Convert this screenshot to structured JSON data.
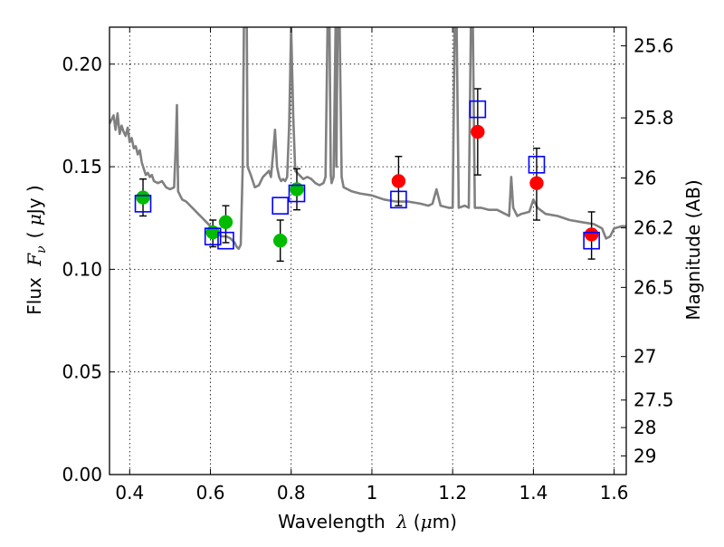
{
  "chart_data": {
    "type": "scatter",
    "title": "",
    "xlabel": {
      "prefix": "Wavelength",
      "symbol": "λ",
      "unit_open": "(",
      "unit_mu": "μ",
      "unit_rest": "m)"
    },
    "ylabel": {
      "prefix": "Flux",
      "symbol": "F",
      "subscript": "ν",
      "unit_open": "(",
      "unit_mu": "μ",
      "unit_rest": "Jy )"
    },
    "ylabel_right": "Magnitude (AB)",
    "xlim": [
      0.35,
      1.63
    ],
    "ylim": [
      0.0,
      0.218
    ],
    "grid": true,
    "x_ticks": [
      {
        "value": 0.4,
        "label": "0.4"
      },
      {
        "value": 0.6,
        "label": "0.6"
      },
      {
        "value": 0.8,
        "label": "0.8"
      },
      {
        "value": 1.0,
        "label": "1"
      },
      {
        "value": 1.2,
        "label": "1.2"
      },
      {
        "value": 1.4,
        "label": "1.4"
      },
      {
        "value": 1.6,
        "label": "1.6"
      }
    ],
    "y_ticks": [
      {
        "value": 0.0,
        "label": "0.00"
      },
      {
        "value": 0.05,
        "label": "0.05"
      },
      {
        "value": 0.1,
        "label": "0.10"
      },
      {
        "value": 0.15,
        "label": "0.15"
      },
      {
        "value": 0.2,
        "label": "0.20"
      }
    ],
    "mag_ticks": [
      {
        "label": "25.6",
        "flux": 0.2089
      },
      {
        "label": "25.8",
        "flux": 0.1738
      },
      {
        "label": "26",
        "flux": 0.1445
      },
      {
        "label": "26.2",
        "flux": 0.1202
      },
      {
        "label": "26.5",
        "flux": 0.0912
      },
      {
        "label": "27",
        "flux": 0.0575
      },
      {
        "label": "27.5",
        "flux": 0.0363
      },
      {
        "label": "28",
        "flux": 0.0229
      },
      {
        "label": "29",
        "flux": 0.0091
      }
    ],
    "colors": {
      "model": "#808080",
      "optical": "#00bb00",
      "infrared": "#ff0000",
      "model_flux": "#0000ff",
      "errorbar": "#000000"
    },
    "model_spectrum": [
      [
        0.35,
        0.171
      ],
      [
        0.36,
        0.175
      ],
      [
        0.365,
        0.168
      ],
      [
        0.37,
        0.176
      ],
      [
        0.375,
        0.166
      ],
      [
        0.38,
        0.17
      ],
      [
        0.385,
        0.167
      ],
      [
        0.39,
        0.165
      ],
      [
        0.395,
        0.169
      ],
      [
        0.4,
        0.162
      ],
      [
        0.405,
        0.164
      ],
      [
        0.41,
        0.159
      ],
      [
        0.415,
        0.16
      ],
      [
        0.42,
        0.156
      ],
      [
        0.425,
        0.158
      ],
      [
        0.43,
        0.152
      ],
      [
        0.435,
        0.149
      ],
      [
        0.44,
        0.146
      ],
      [
        0.445,
        0.147
      ],
      [
        0.45,
        0.145
      ],
      [
        0.455,
        0.146
      ],
      [
        0.46,
        0.143
      ],
      [
        0.47,
        0.142
      ],
      [
        0.48,
        0.143
      ],
      [
        0.49,
        0.14
      ],
      [
        0.5,
        0.139
      ],
      [
        0.51,
        0.14
      ],
      [
        0.514,
        0.16
      ],
      [
        0.517,
        0.18
      ],
      [
        0.52,
        0.138
      ],
      [
        0.53,
        0.134
      ],
      [
        0.54,
        0.133
      ],
      [
        0.55,
        0.131
      ],
      [
        0.56,
        0.129
      ],
      [
        0.57,
        0.127
      ],
      [
        0.58,
        0.125
      ],
      [
        0.59,
        0.123
      ],
      [
        0.6,
        0.121
      ],
      [
        0.61,
        0.119
      ],
      [
        0.62,
        0.117
      ],
      [
        0.63,
        0.116
      ],
      [
        0.64,
        0.116
      ],
      [
        0.65,
        0.115
      ],
      [
        0.66,
        0.113
      ],
      [
        0.665,
        0.111
      ],
      [
        0.67,
        0.11
      ],
      [
        0.675,
        0.112
      ],
      [
        0.68,
        0.15
      ],
      [
        0.683,
        0.218
      ],
      [
        0.69,
        0.218
      ],
      [
        0.692,
        0.15
      ],
      [
        0.7,
        0.146
      ],
      [
        0.71,
        0.14
      ],
      [
        0.72,
        0.141
      ],
      [
        0.73,
        0.145
      ],
      [
        0.74,
        0.147
      ],
      [
        0.745,
        0.148
      ],
      [
        0.75,
        0.145
      ],
      [
        0.755,
        0.156
      ],
      [
        0.76,
        0.168
      ],
      [
        0.765,
        0.15
      ],
      [
        0.77,
        0.145
      ],
      [
        0.775,
        0.143
      ],
      [
        0.78,
        0.144
      ],
      [
        0.785,
        0.143
      ],
      [
        0.79,
        0.145
      ],
      [
        0.795,
        0.17
      ],
      [
        0.8,
        0.218
      ],
      [
        0.805,
        0.175
      ],
      [
        0.81,
        0.148
      ],
      [
        0.82,
        0.146
      ],
      [
        0.83,
        0.144
      ],
      [
        0.84,
        0.145
      ],
      [
        0.85,
        0.144
      ],
      [
        0.86,
        0.142
      ],
      [
        0.87,
        0.141
      ],
      [
        0.88,
        0.142
      ],
      [
        0.885,
        0.145
      ],
      [
        0.89,
        0.218
      ],
      [
        0.895,
        0.218
      ],
      [
        0.898,
        0.146
      ],
      [
        0.9,
        0.142
      ],
      [
        0.905,
        0.145
      ],
      [
        0.91,
        0.218
      ],
      [
        0.912,
        0.15
      ],
      [
        0.915,
        0.218
      ],
      [
        0.92,
        0.218
      ],
      [
        0.925,
        0.145
      ],
      [
        0.93,
        0.14
      ],
      [
        0.95,
        0.138
      ],
      [
        0.97,
        0.137
      ],
      [
        1.0,
        0.136
      ],
      [
        1.03,
        0.134
      ],
      [
        1.06,
        0.133
      ],
      [
        1.09,
        0.133
      ],
      [
        1.12,
        0.132
      ],
      [
        1.14,
        0.131
      ],
      [
        1.15,
        0.132
      ],
      [
        1.16,
        0.139
      ],
      [
        1.17,
        0.131
      ],
      [
        1.19,
        0.13
      ],
      [
        1.2,
        0.13
      ],
      [
        1.205,
        0.218
      ],
      [
        1.21,
        0.218
      ],
      [
        1.215,
        0.13
      ],
      [
        1.23,
        0.131
      ],
      [
        1.24,
        0.13
      ],
      [
        1.245,
        0.218
      ],
      [
        1.25,
        0.218
      ],
      [
        1.255,
        0.13
      ],
      [
        1.27,
        0.13
      ],
      [
        1.29,
        0.129
      ],
      [
        1.31,
        0.129
      ],
      [
        1.33,
        0.127
      ],
      [
        1.34,
        0.126
      ],
      [
        1.345,
        0.145
      ],
      [
        1.35,
        0.13
      ],
      [
        1.36,
        0.126
      ],
      [
        1.37,
        0.127
      ],
      [
        1.39,
        0.128
      ],
      [
        1.4,
        0.134
      ],
      [
        1.41,
        0.13
      ],
      [
        1.43,
        0.127
      ],
      [
        1.46,
        0.126
      ],
      [
        1.49,
        0.124
      ],
      [
        1.52,
        0.123
      ],
      [
        1.55,
        0.122
      ],
      [
        1.57,
        0.12
      ],
      [
        1.58,
        0.115
      ],
      [
        1.59,
        0.116
      ],
      [
        1.6,
        0.12
      ],
      [
        1.62,
        0.121
      ],
      [
        1.63,
        0.121
      ]
    ],
    "series": [
      {
        "marker": "circle",
        "color_key": "optical",
        "points": [
          {
            "x": 0.433,
            "y": 0.135
          },
          {
            "x": 0.606,
            "y": 0.118
          },
          {
            "x": 0.638,
            "y": 0.123
          },
          {
            "x": 0.773,
            "y": 0.114
          },
          {
            "x": 0.814,
            "y": 0.139
          }
        ]
      },
      {
        "marker": "circle",
        "color_key": "infrared",
        "points": [
          {
            "x": 1.066,
            "y": 0.143
          },
          {
            "x": 1.262,
            "y": 0.167
          },
          {
            "x": 1.408,
            "y": 0.142
          },
          {
            "x": 1.544,
            "y": 0.117
          }
        ]
      },
      {
        "marker": "square",
        "color_key": "model_flux",
        "points": [
          {
            "x": 0.433,
            "y": 0.132
          },
          {
            "x": 0.606,
            "y": 0.116
          },
          {
            "x": 0.638,
            "y": 0.114
          },
          {
            "x": 0.773,
            "y": 0.131
          },
          {
            "x": 0.814,
            "y": 0.137
          },
          {
            "x": 1.066,
            "y": 0.134
          },
          {
            "x": 1.262,
            "y": 0.178
          },
          {
            "x": 1.408,
            "y": 0.151
          },
          {
            "x": 1.544,
            "y": 0.114
          }
        ]
      }
    ],
    "errorbars": [
      {
        "x": 0.433,
        "y": 0.135,
        "low": 0.126,
        "high": 0.144
      },
      {
        "x": 0.606,
        "y": 0.118,
        "low": 0.111,
        "high": 0.124
      },
      {
        "x": 0.638,
        "y": 0.123,
        "low": 0.113,
        "high": 0.131
      },
      {
        "x": 0.773,
        "y": 0.114,
        "low": 0.104,
        "high": 0.124
      },
      {
        "x": 0.814,
        "y": 0.139,
        "low": 0.129,
        "high": 0.149
      },
      {
        "x": 1.066,
        "y": 0.143,
        "low": 0.131,
        "high": 0.155
      },
      {
        "x": 1.262,
        "y": 0.167,
        "low": 0.146,
        "high": 0.188
      },
      {
        "x": 1.408,
        "y": 0.142,
        "low": 0.124,
        "high": 0.159
      },
      {
        "x": 1.544,
        "y": 0.117,
        "low": 0.105,
        "high": 0.128
      }
    ]
  }
}
